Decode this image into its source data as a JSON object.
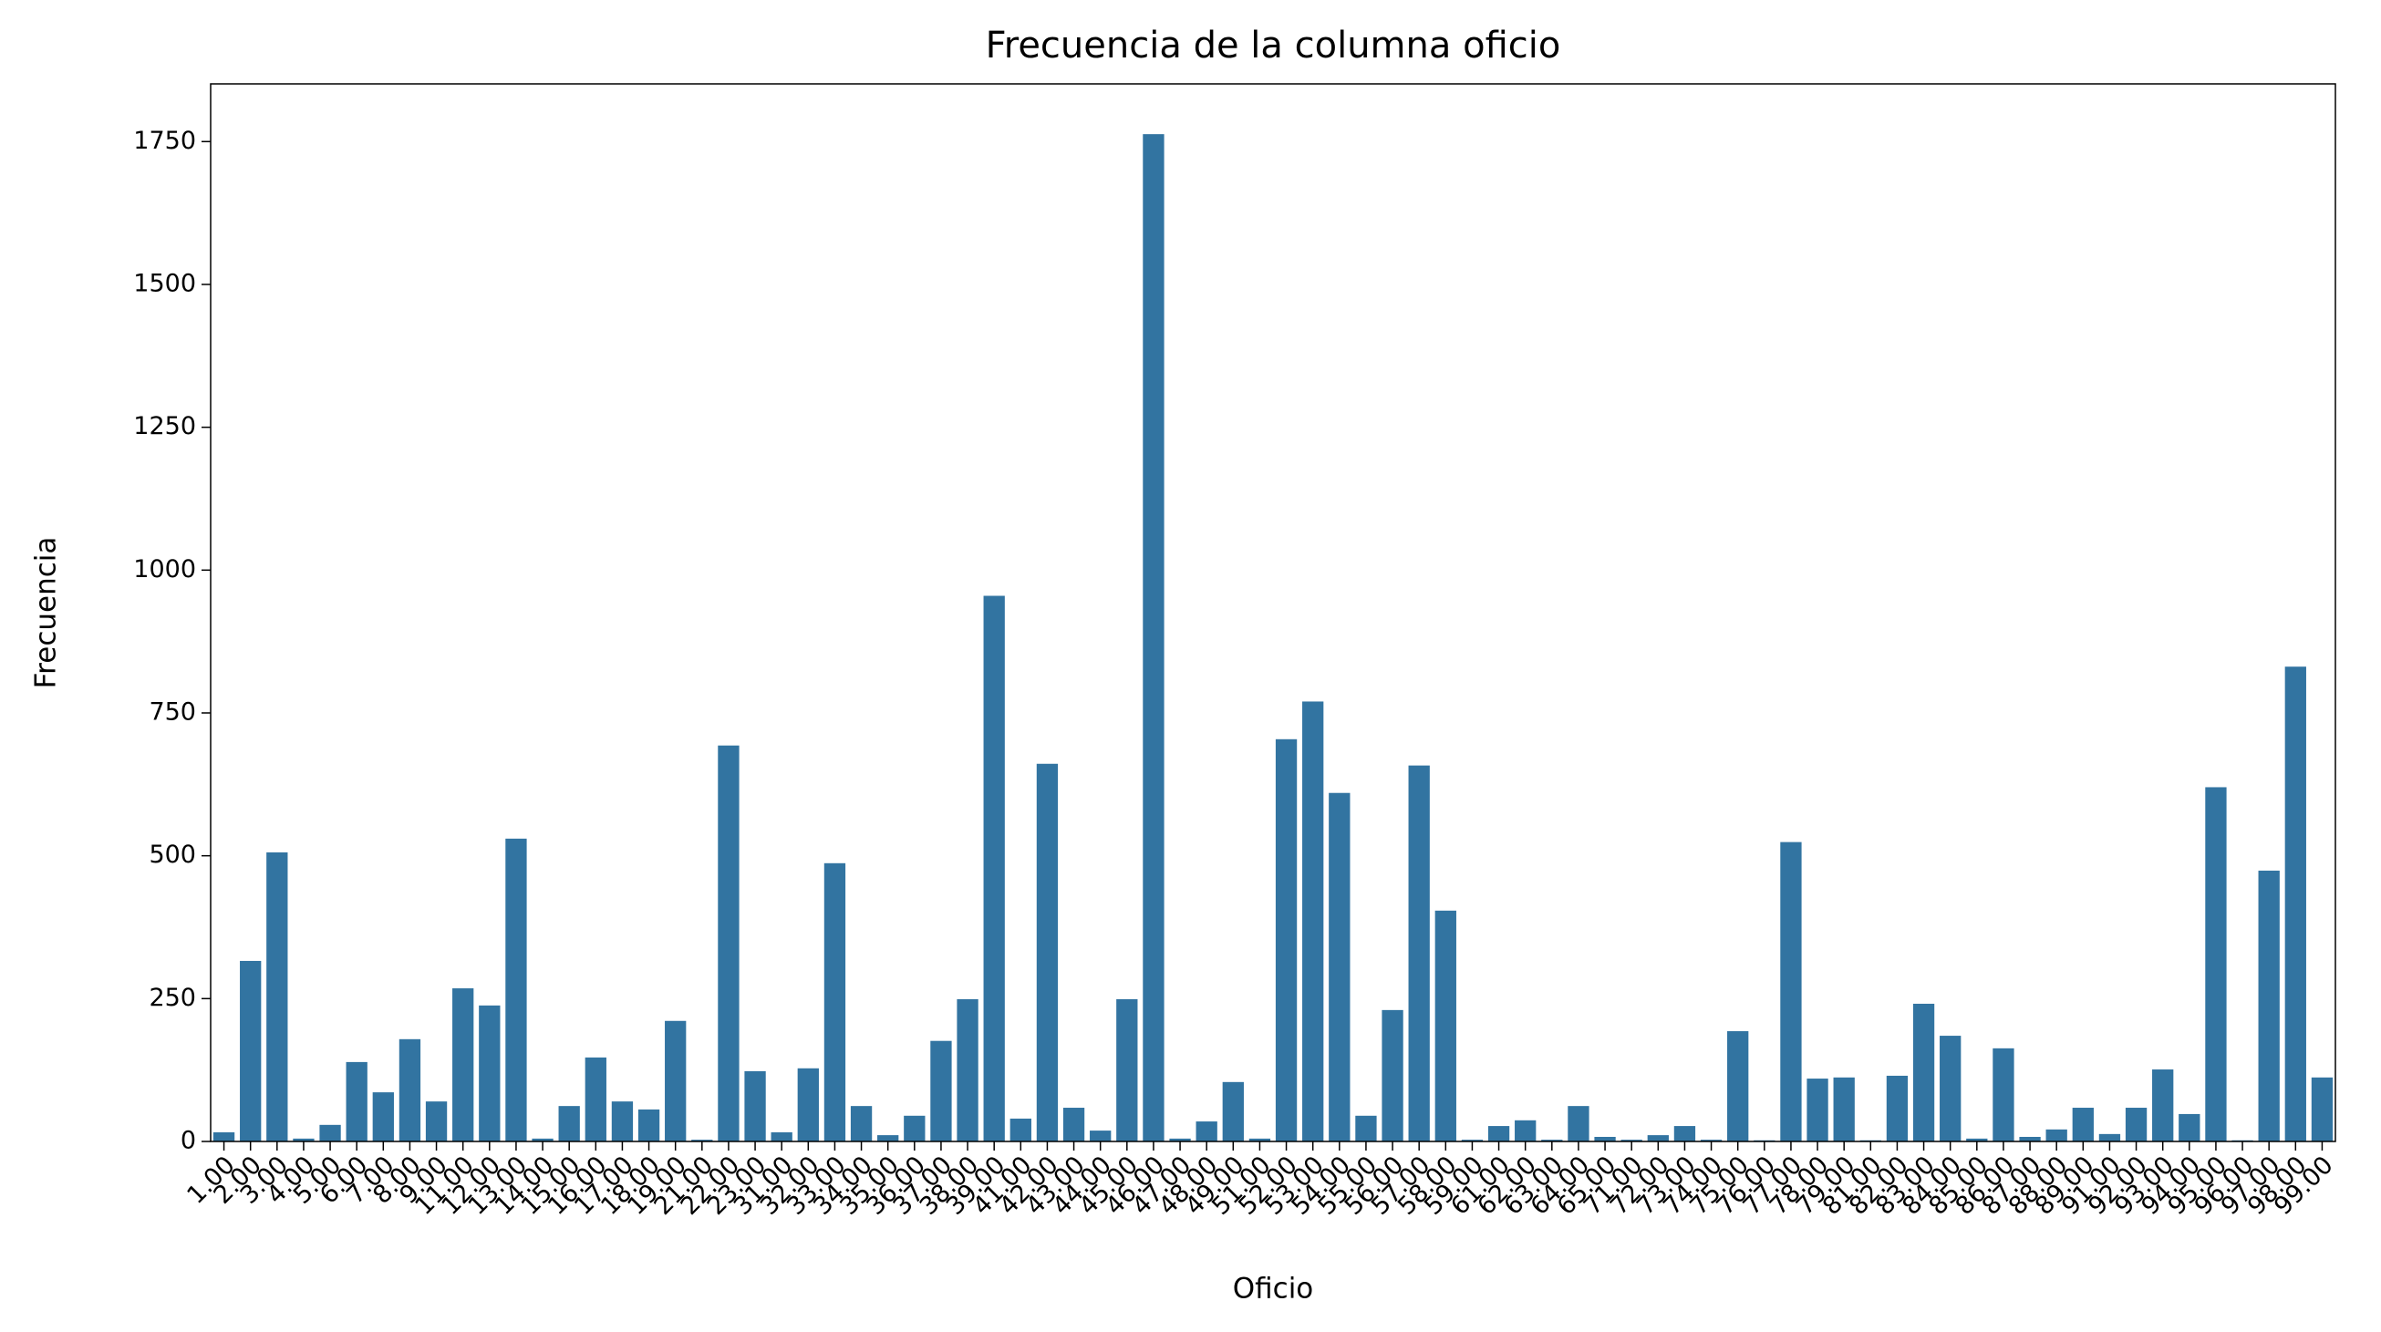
{
  "chart_data": {
    "type": "bar",
    "title": "Frecuencia de la columna oficio",
    "x_label": "Oficio",
    "y_label": "Frecuencia",
    "categories": [
      "1.00",
      "2.00",
      "3.00",
      "4.00",
      "5.00",
      "6.00",
      "7.00",
      "8.00",
      "9.00",
      "11.00",
      "12.00",
      "13.00",
      "14.00",
      "15.00",
      "16.00",
      "17.00",
      "18.00",
      "19.00",
      "21.00",
      "22.00",
      "23.00",
      "31.00",
      "32.00",
      "33.00",
      "34.00",
      "35.00",
      "36.00",
      "37.00",
      "38.00",
      "39.00",
      "41.00",
      "42.00",
      "43.00",
      "44.00",
      "45.00",
      "46.00",
      "47.00",
      "48.00",
      "49.00",
      "51.00",
      "52.00",
      "53.00",
      "54.00",
      "55.00",
      "56.00",
      "57.00",
      "58.00",
      "59.00",
      "61.00",
      "62.00",
      "63.00",
      "64.00",
      "65.00",
      "71.00",
      "72.00",
      "73.00",
      "74.00",
      "75.00",
      "76.00",
      "77.00",
      "78.00",
      "79.00",
      "81.00",
      "82.00",
      "83.00",
      "84.00",
      "85.00",
      "86.00",
      "87.00",
      "88.00",
      "89.00",
      "91.00",
      "92.00",
      "93.00",
      "94.00",
      "95.00",
      "96.00",
      "97.00",
      "98.00",
      "99.00"
    ],
    "values": [
      16,
      316,
      506,
      5,
      29,
      139,
      86,
      179,
      70,
      268,
      238,
      530,
      5,
      62,
      147,
      70,
      56,
      211,
      3,
      693,
      123,
      16,
      128,
      487,
      62,
      11,
      45,
      176,
      249,
      955,
      40,
      661,
      59,
      19,
      249,
      1763,
      5,
      35,
      104,
      5,
      704,
      770,
      610,
      45,
      230,
      658,
      404,
      3,
      27,
      37,
      3,
      62,
      8,
      3,
      11,
      27,
      3,
      193,
      2,
      524,
      110,
      112,
      2,
      115,
      241,
      185,
      5,
      163,
      8,
      21,
      59,
      13,
      59,
      126,
      48,
      620,
      2,
      474,
      831,
      112
    ],
    "color": "#3274a1",
    "ylim": [
      0,
      1851
    ],
    "yticks": [
      0,
      250,
      500,
      750,
      1000,
      1250,
      1500,
      1750
    ],
    "grid": false
  }
}
